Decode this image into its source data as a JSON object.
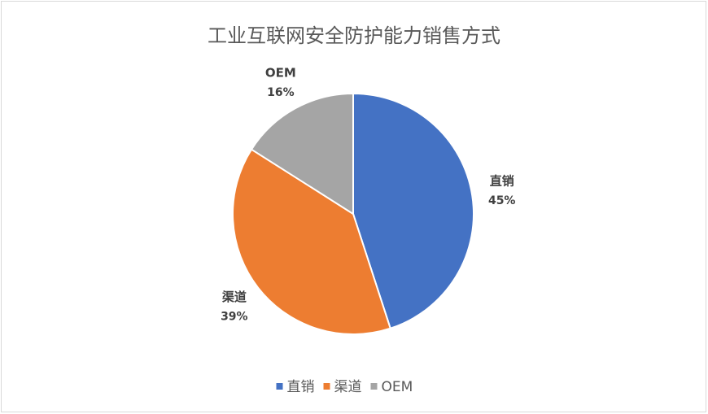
{
  "chart_data": {
    "type": "pie",
    "title": "工业互联网安全防护能力销售方式",
    "categories": [
      "直销",
      "渠道",
      "OEM"
    ],
    "values": [
      45,
      39,
      16
    ],
    "value_labels": [
      "45%",
      "39%",
      "16%"
    ],
    "colors": [
      "#4472c4",
      "#ed7d31",
      "#a5a5a5"
    ],
    "legend": "bottom"
  }
}
